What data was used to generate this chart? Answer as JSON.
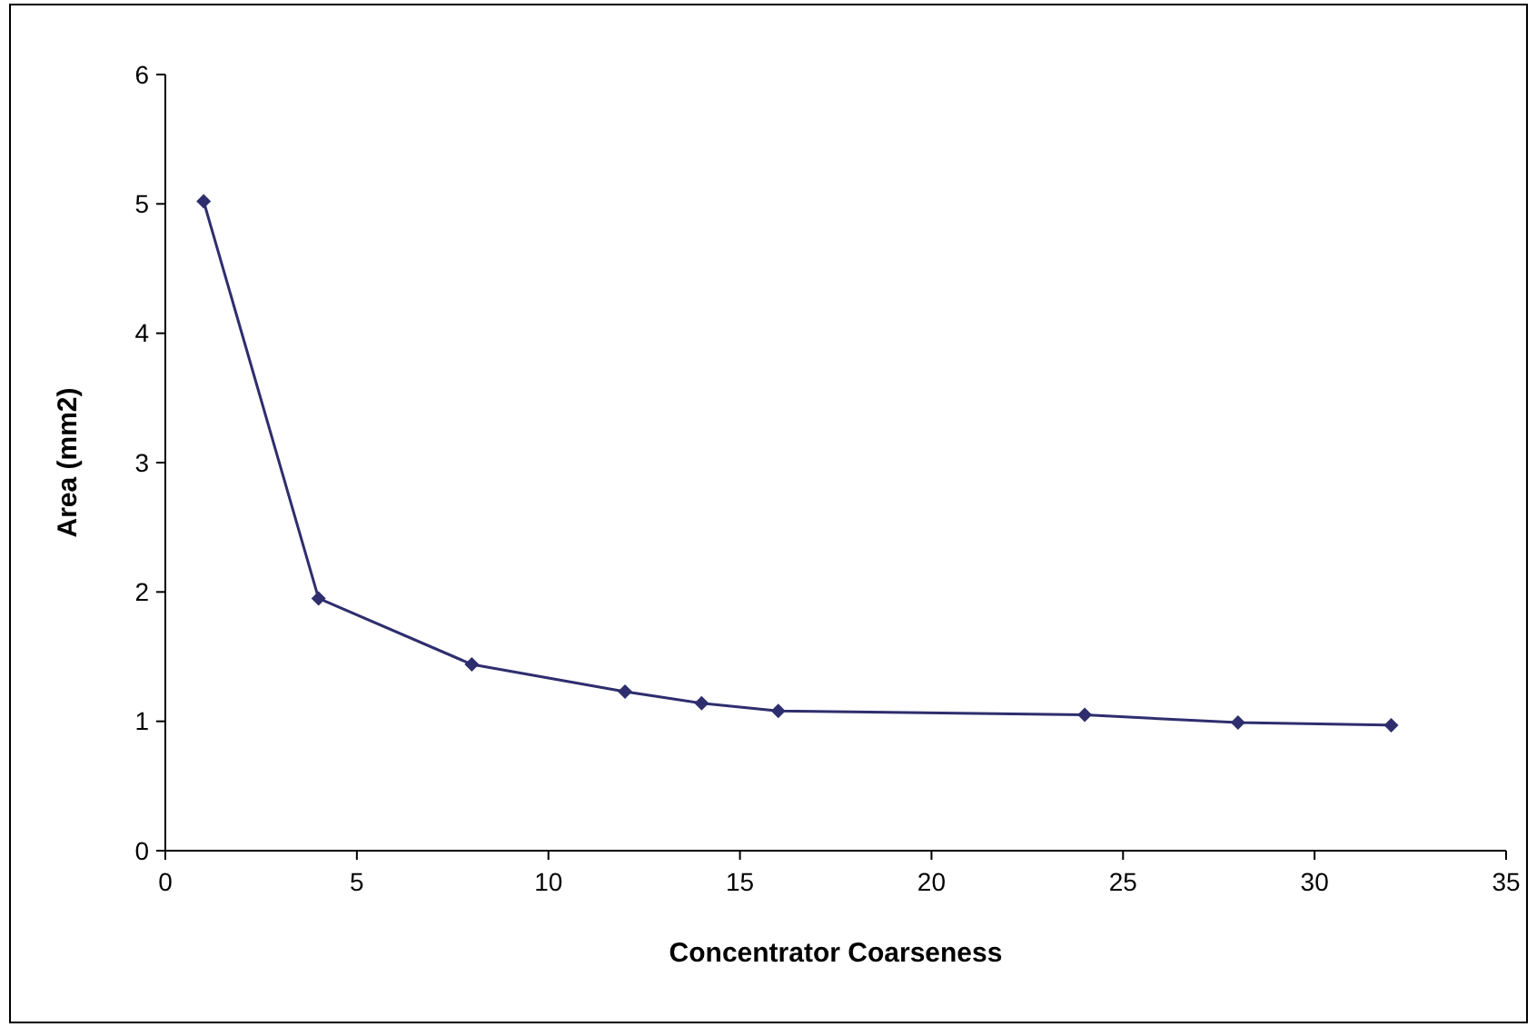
{
  "chart_data": {
    "type": "line",
    "xlabel": "Concentrator Coarseness",
    "ylabel": "Area (mm2)",
    "x": [
      1,
      4,
      8,
      12,
      14,
      16,
      24,
      28,
      32
    ],
    "series": [
      {
        "color": "#2e2e6e",
        "values": [
          5.02,
          1.95,
          1.44,
          1.23,
          1.14,
          1.08,
          1.05,
          0.99,
          0.97
        ]
      }
    ],
    "xlim": [
      0,
      35
    ],
    "xticks": [
      0,
      5,
      10,
      15,
      20,
      25,
      30,
      35
    ],
    "ylim": [
      0,
      6
    ],
    "yticks": [
      0,
      1,
      2,
      3,
      4,
      5,
      6
    ],
    "grid": false,
    "marker": "diamond",
    "line_style": "solid"
  }
}
